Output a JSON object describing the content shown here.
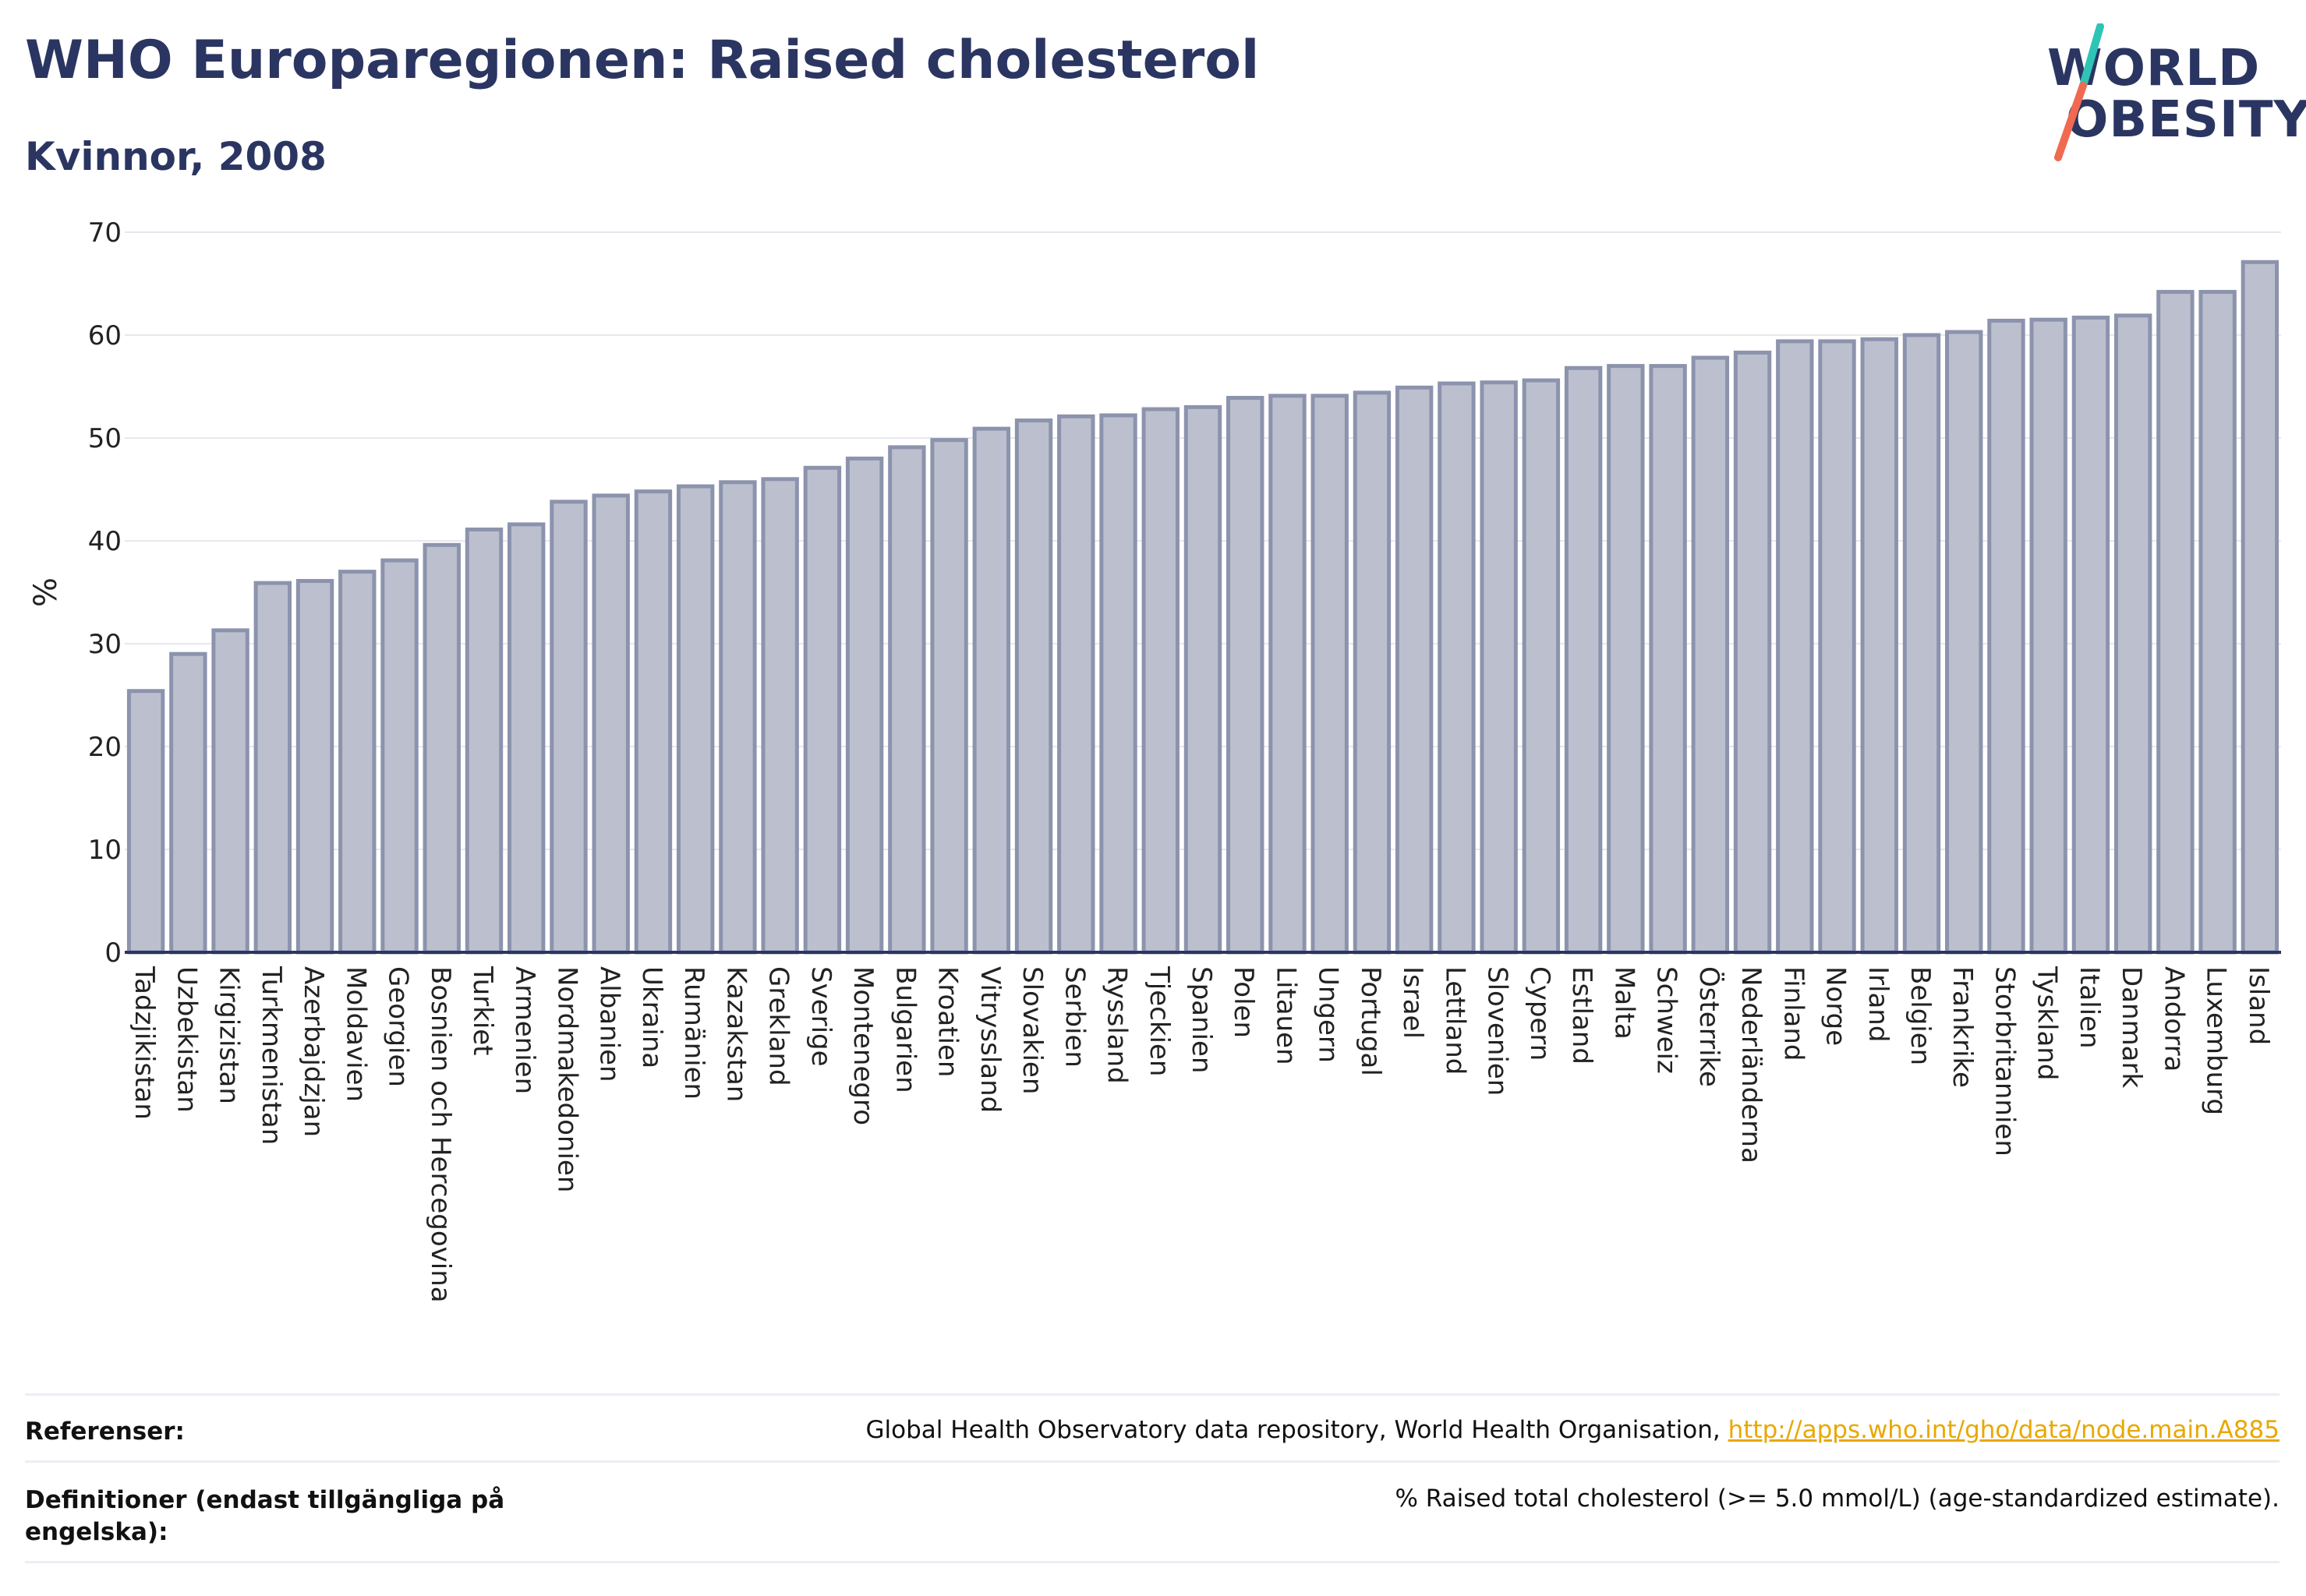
{
  "header": {
    "title": "WHO Europaregionen: Raised cholesterol",
    "subtitle": "Kvinnor, 2008"
  },
  "logo": {
    "line1": "WORLD",
    "line2": "OBESITY",
    "colors": {
      "text": "#2b3561",
      "slash_top": "#2ec4b6",
      "slash_bottom": "#ef6a50"
    }
  },
  "chart_data": {
    "type": "bar",
    "title": "WHO Europaregionen: Raised cholesterol",
    "subtitle": "Kvinnor, 2008",
    "ylabel": "%",
    "xlabel": "",
    "ylim": [
      0,
      70
    ],
    "yticks": [
      0,
      10,
      20,
      30,
      40,
      50,
      60,
      70
    ],
    "grid": true,
    "bar_fill": "#bcc0ce",
    "bar_stroke": "#8c93ad",
    "categories": [
      "Tadzjikistan",
      "Uzbekistan",
      "Kirgizistan",
      "Turkmenistan",
      "Azerbajdzjan",
      "Moldavien",
      "Georgien",
      "Bosnien och Hercegovina",
      "Turkiet",
      "Armenien",
      "Nordmakedonien",
      "Albanien",
      "Ukraina",
      "Rumänien",
      "Kazakstan",
      "Grekland",
      "Sverige",
      "Montenegro",
      "Bulgarien",
      "Kroatien",
      "Vitryssland",
      "Slovakien",
      "Serbien",
      "Ryssland",
      "Tjeckien",
      "Spanien",
      "Polen",
      "Litauen",
      "Ungern",
      "Portugal",
      "Israel",
      "Lettland",
      "Slovenien",
      "Cypern",
      "Estland",
      "Malta",
      "Schweiz",
      "Österrike",
      "Nederländerna",
      "Finland",
      "Norge",
      "Irland",
      "Belgien",
      "Frankrike",
      "Storbritannien",
      "Tyskland",
      "Italien",
      "Danmark",
      "Andorra",
      "Luxemburg",
      "Island"
    ],
    "values": [
      25.4,
      29.0,
      31.3,
      35.9,
      36.1,
      37.0,
      38.1,
      39.6,
      41.1,
      41.6,
      43.8,
      44.4,
      44.8,
      45.3,
      45.7,
      46.0,
      47.1,
      48.0,
      49.1,
      49.8,
      50.9,
      51.7,
      52.1,
      52.2,
      52.8,
      53.0,
      53.9,
      54.1,
      54.1,
      54.4,
      54.9,
      55.3,
      55.4,
      55.6,
      56.8,
      57.0,
      57.0,
      57.8,
      58.3,
      59.4,
      59.4,
      59.6,
      60.0,
      60.3,
      61.4,
      61.5,
      61.7,
      61.9,
      64.2,
      64.2,
      67.1
    ]
  },
  "footer": {
    "ref_label": "Referenser:",
    "ref_text": "Global Health Observatory data repository, World Health Organisation, ",
    "ref_link": "http://apps.who.int/gho/data/node.main.A885",
    "def_label": "Definitioner (endast tillgängliga på engelska):",
    "def_text": "% Raised total cholesterol (>= 5.0 mmol/L) (age-standardized estimate)."
  }
}
